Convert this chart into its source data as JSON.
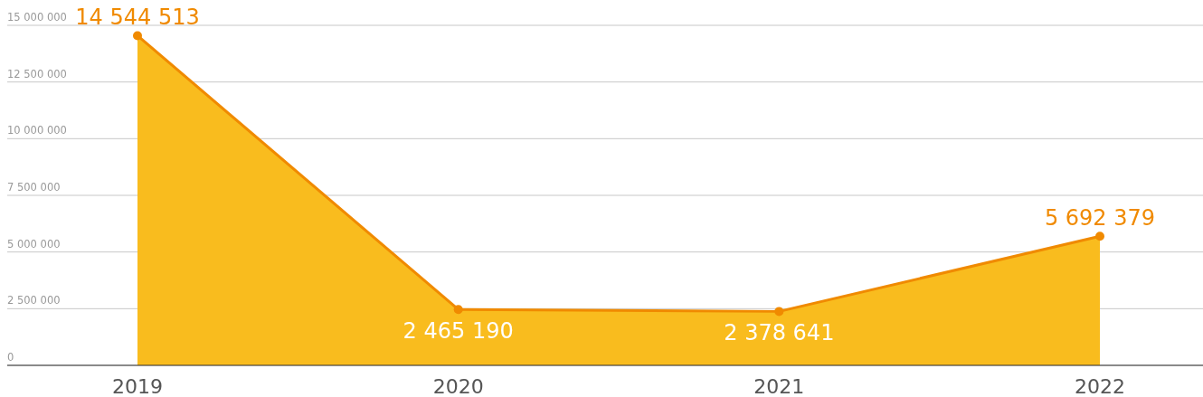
{
  "chart_data": {
    "type": "area",
    "categories": [
      "2019",
      "2020",
      "2021",
      "2022"
    ],
    "series": [
      {
        "color": "#f08a00",
        "values": [
          14544513,
          2465190,
          2378641,
          5692379
        ],
        "value_labels": [
          "14 544 513",
          "2 465 190",
          "2 378 641",
          "5 692 379"
        ]
      }
    ],
    "ylim": [
      0,
      15000000
    ],
    "yticks": [
      {
        "value": 0,
        "label": "0"
      },
      {
        "value": 2500000,
        "label": "2 500 000"
      },
      {
        "value": 5000000,
        "label": "5 000 000"
      },
      {
        "value": 7500000,
        "label": "7 500 000"
      },
      {
        "value": 10000000,
        "label": "10 000 000"
      },
      {
        "value": 12500000,
        "label": "12 500 000"
      },
      {
        "value": 15000000,
        "label": "15 000 000"
      }
    ],
    "grid": "y",
    "marker": "circle"
  }
}
